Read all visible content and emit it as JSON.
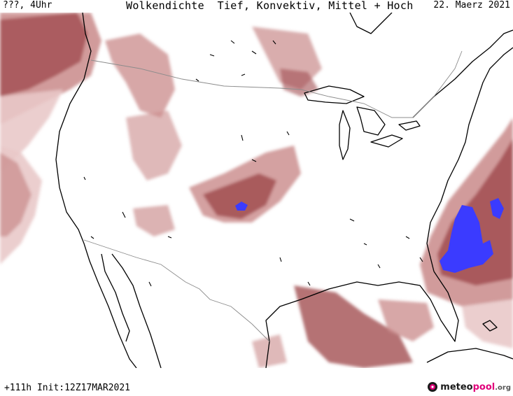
{
  "header": {
    "left": "???, 4Uhr",
    "title": "Wolkendichte  Tief, Konvektiv, Mittel + Hoch",
    "date": "22. Maerz 2021"
  },
  "footer": {
    "run_info": "+111h Init:12Z17MAR2021",
    "logo_part1": "meteo",
    "logo_part2": "pool",
    "logo_part3": ".org"
  },
  "colors": {
    "cloud_light": "#e9c9c9",
    "cloud_mid": "#c98a8a",
    "cloud_dense": "#a24f52",
    "cloud_peak": "#3b3bff",
    "coast": "#000000",
    "border": "#8c8c8c"
  }
}
